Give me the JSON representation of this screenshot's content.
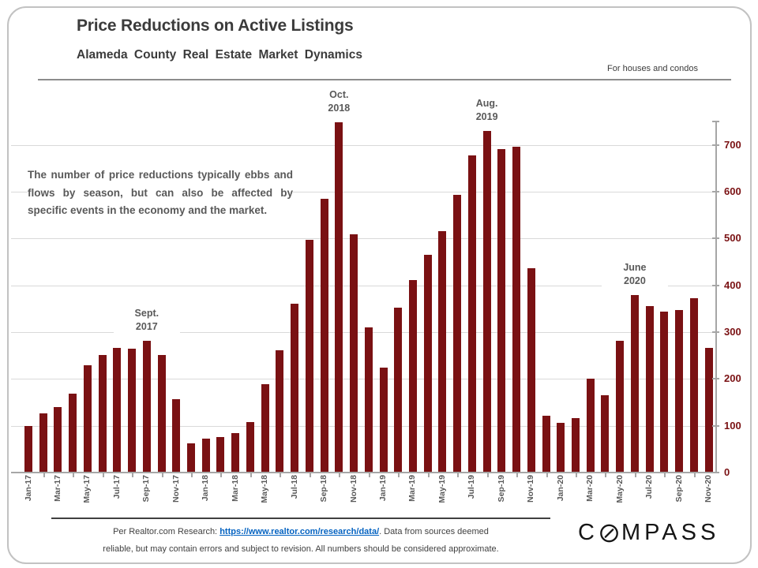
{
  "header": {
    "title": "Price Reductions on Active Listings",
    "subtitle": "Alameda County Real Estate Market Dynamics",
    "tagline": "For houses and condos"
  },
  "note": "The number of price reductions typically ebbs and flows by season, but can also be affected by specific events in the economy and the market.",
  "footer": {
    "line1_pre": "Per Realtor.com Research:  ",
    "link_text": "https://www.realtor.com/research/data/",
    "line1_post": ". Data from sources deemed",
    "line2": "reliable, but may contain errors and subject to revision. All numbers should be considered approximate."
  },
  "logo": {
    "pre": "C",
    "post": "MPASS"
  },
  "chart_data": {
    "type": "bar",
    "title": "Price Reductions on Active Listings",
    "subtitle": "Alameda County Real Estate Market Dynamics",
    "xlabel": "",
    "ylabel": "",
    "ylim": [
      0,
      750
    ],
    "y_ticks": [
      0,
      100,
      200,
      300,
      400,
      500,
      600,
      700
    ],
    "x_label_every": 2,
    "grid": true,
    "legend": "none",
    "bar_color": "#7a1113",
    "grid_color": "#d9d9d9",
    "axis_color": "#a6a6a6",
    "y_label_color": "#7a1113",
    "x_label_color": "#595959",
    "categories": [
      "Jan-17",
      "Feb-17",
      "Mar-17",
      "Apr-17",
      "May-17",
      "Jun-17",
      "Jul-17",
      "Aug-17",
      "Sep-17",
      "Oct-17",
      "Nov-17",
      "Dec-17",
      "Jan-18",
      "Feb-18",
      "Mar-18",
      "Apr-18",
      "May-18",
      "Jun-18",
      "Jul-18",
      "Aug-18",
      "Sep-18",
      "Oct-18",
      "Nov-18",
      "Dec-18",
      "Jan-19",
      "Feb-19",
      "Mar-19",
      "Apr-19",
      "May-19",
      "Jun-19",
      "Jul-19",
      "Aug-19",
      "Sep-19",
      "Oct-19",
      "Nov-19",
      "Dec-19",
      "Jan-20",
      "Feb-20",
      "Mar-20",
      "Apr-20",
      "May-20",
      "Jun-20",
      "Jul-20",
      "Aug-20",
      "Sep-20",
      "Oct-20",
      "Nov-20"
    ],
    "values": [
      100,
      127,
      140,
      168,
      230,
      252,
      266,
      264,
      281,
      252,
      156,
      63,
      73,
      76,
      85,
      108,
      188,
      262,
      360,
      498,
      585,
      748,
      510,
      311,
      224,
      352,
      412,
      465,
      516,
      593,
      677,
      730,
      692,
      697,
      436,
      121,
      107,
      116,
      200,
      165,
      281,
      380,
      356,
      344,
      348,
      372,
      267
    ],
    "annotations": [
      {
        "category": "Sep-17",
        "lines": [
          "Sept.",
          "2017"
        ]
      },
      {
        "category": "Oct-18",
        "lines": [
          "Oct.",
          "2018"
        ]
      },
      {
        "category": "Aug-19",
        "lines": [
          "Aug.",
          "2019"
        ]
      },
      {
        "category": "Jun-20",
        "lines": [
          "June",
          "2020"
        ]
      }
    ]
  }
}
